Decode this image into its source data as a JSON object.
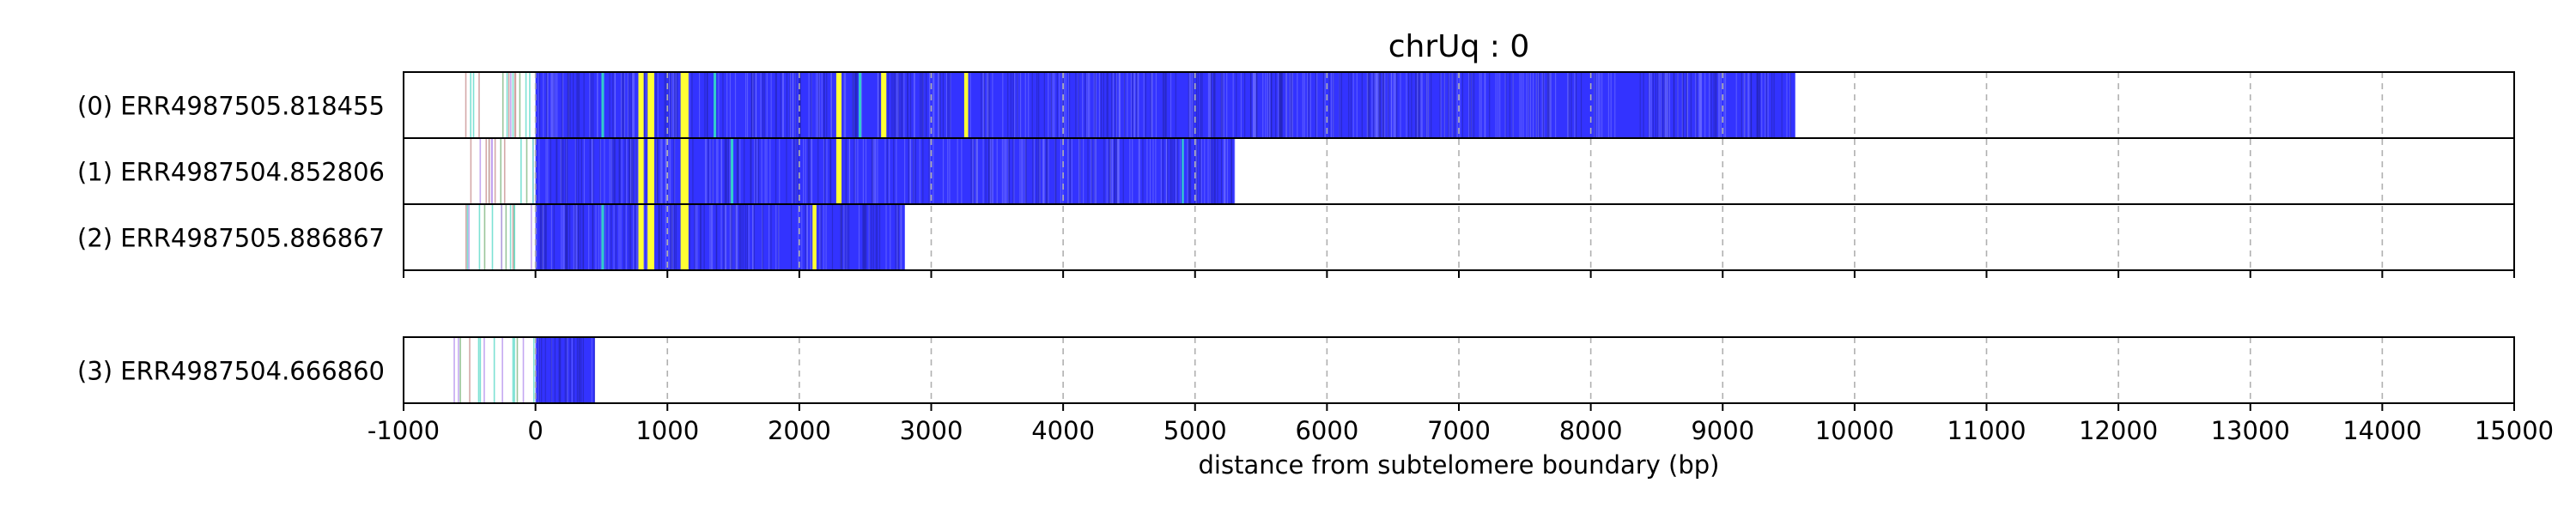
{
  "chart_data": {
    "type": "read-track",
    "title": "chrUq : 0",
    "xlabel": "distance from subtelomere boundary (bp)",
    "xlim": [
      -1000,
      15000
    ],
    "xticks": [
      "-1000",
      "0",
      "1000",
      "2000",
      "3000",
      "4000",
      "5000",
      "6000",
      "7000",
      "8000",
      "9000",
      "10000",
      "11000",
      "12000",
      "13000",
      "14000",
      "15000"
    ],
    "grid": "vertical dashed",
    "colors": {
      "main": "#3333ff",
      "yellow": "#ffff33",
      "teal": "#33cccc",
      "subtelomere_green": "#88bb88",
      "subtelomere_red": "#cc9999",
      "subtelomere_purple": "#bb99ee",
      "subtelomere_cyan": "#66ddcc"
    },
    "groups": [
      {
        "reads": [
          {
            "label": "(0) ERR4987505.818455",
            "start": -600,
            "end": 9550,
            "yellow": [
              [
                780,
                820
              ],
              [
                850,
                900
              ],
              [
                1100,
                1160
              ],
              [
                2280,
                2320
              ],
              [
                2620,
                2660
              ],
              [
                3250,
                3280
              ]
            ],
            "teal": [
              [
                500,
                520
              ],
              [
                1350,
                1370
              ],
              [
                2450,
                2470
              ]
            ]
          },
          {
            "label": "(1) ERR4987504.852806",
            "start": -600,
            "end": 5300,
            "yellow": [
              [
                780,
                820
              ],
              [
                850,
                900
              ],
              [
                1100,
                1160
              ],
              [
                2280,
                2320
              ]
            ],
            "teal": [
              [
                1480,
                1500
              ],
              [
                4900,
                4915
              ]
            ]
          },
          {
            "label": "(2) ERR4987505.886867",
            "start": -600,
            "end": 2800,
            "yellow": [
              [
                780,
                820
              ],
              [
                850,
                900
              ],
              [
                1100,
                1160
              ],
              [
                2100,
                2130
              ]
            ],
            "teal": [
              [
                500,
                520
              ]
            ]
          }
        ]
      },
      {
        "reads": [
          {
            "label": "(3) ERR4987504.666860",
            "start": -700,
            "end": 450,
            "yellow": [],
            "teal": []
          }
        ]
      }
    ]
  }
}
